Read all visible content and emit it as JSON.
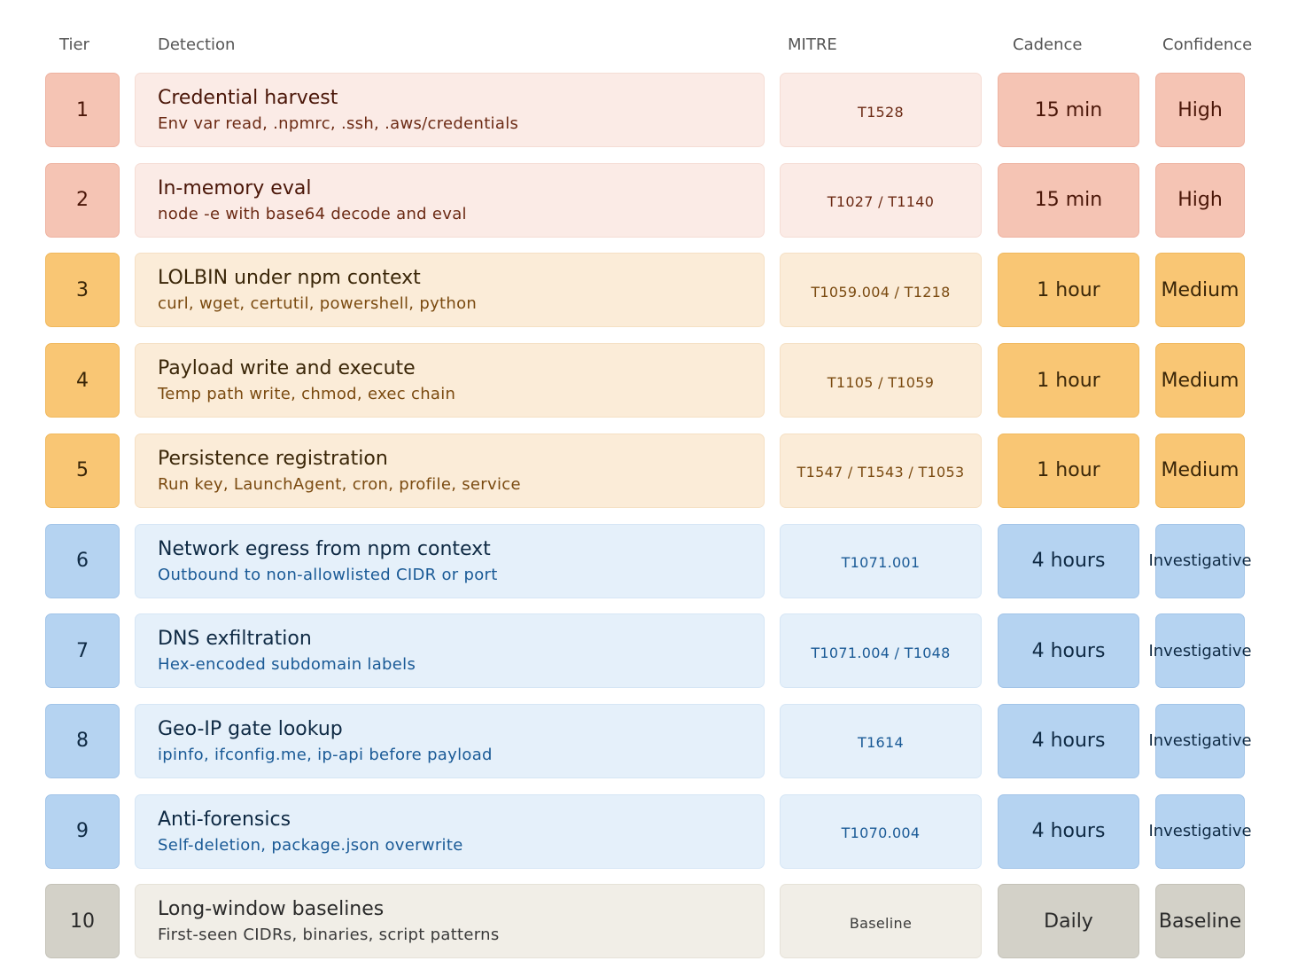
{
  "header": {
    "tier": "Tier",
    "detection": "Detection",
    "mitre": "MITRE",
    "cadence": "Cadence",
    "confidence": "Confidence"
  },
  "rows": [
    {
      "tier": "1",
      "title": "Credential harvest",
      "subtitle": "Env var read, .npmrc, .ssh, .aws/credentials",
      "mitre": "T1528",
      "cadence": "15 min",
      "confidence": "High"
    },
    {
      "tier": "2",
      "title": "In-memory eval",
      "subtitle": "node -e with base64 decode and eval",
      "mitre": "T1027 / T1140",
      "cadence": "15 min",
      "confidence": "High"
    },
    {
      "tier": "3",
      "title": "LOLBIN under npm context",
      "subtitle": "curl, wget, certutil, powershell, python",
      "mitre": "T1059.004 / T1218",
      "cadence": "1 hour",
      "confidence": "Medium"
    },
    {
      "tier": "4",
      "title": "Payload write and execute",
      "subtitle": "Temp path write, chmod, exec chain",
      "mitre": "T1105 / T1059",
      "cadence": "1 hour",
      "confidence": "Medium"
    },
    {
      "tier": "5",
      "title": "Persistence registration",
      "subtitle": "Run key, LaunchAgent, cron, profile, service",
      "mitre": "T1547 / T1543 / T1053",
      "cadence": "1 hour",
      "confidence": "Medium"
    },
    {
      "tier": "6",
      "title": "Network egress from npm context",
      "subtitle": "Outbound to non-allowlisted CIDR or port",
      "mitre": "T1071.001",
      "cadence": "4 hours",
      "confidence": "Investigative"
    },
    {
      "tier": "7",
      "title": "DNS exfiltration",
      "subtitle": "Hex-encoded subdomain labels",
      "mitre": "T1071.004 / T1048",
      "cadence": "4 hours",
      "confidence": "Investigative"
    },
    {
      "tier": "8",
      "title": "Geo-IP gate lookup",
      "subtitle": "ipinfo, ifconfig.me, ip-api before payload",
      "mitre": "T1614",
      "cadence": "4 hours",
      "confidence": "Investigative"
    },
    {
      "tier": "9",
      "title": "Anti-forensics",
      "subtitle": "Self-deletion, package.json overwrite",
      "mitre": "T1070.004",
      "cadence": "4 hours",
      "confidence": "Investigative"
    },
    {
      "tier": "10",
      "title": "Long-window baselines",
      "subtitle": "First-seen CIDRs, binaries, script patterns",
      "mitre": "Baseline",
      "cadence": "Daily",
      "confidence": "Baseline"
    }
  ]
}
